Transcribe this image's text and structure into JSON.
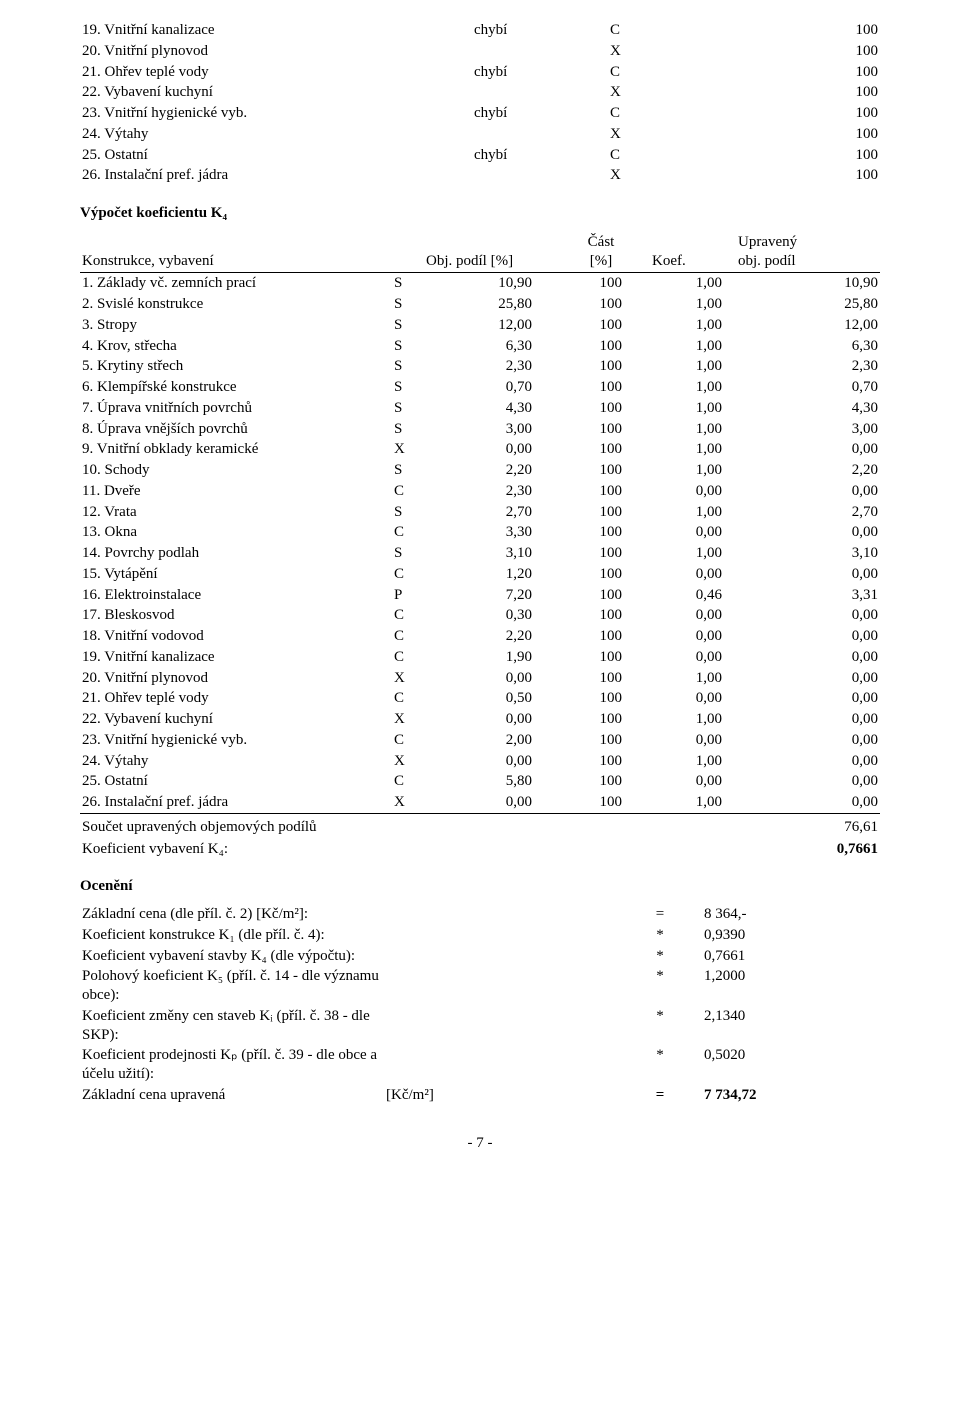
{
  "tbl1": {
    "rows": [
      {
        "label": "19. Vnitřní kanalizace",
        "c2": "chybí",
        "c3": "C",
        "c4": "100"
      },
      {
        "label": "20. Vnitřní plynovod",
        "c2": "",
        "c3": "X",
        "c4": "100"
      },
      {
        "label": "21. Ohřev teplé vody",
        "c2": "chybí",
        "c3": "C",
        "c4": "100"
      },
      {
        "label": "22. Vybavení kuchyní",
        "c2": "",
        "c3": "X",
        "c4": "100"
      },
      {
        "label": "23. Vnitřní hygienické vyb.",
        "c2": "chybí",
        "c3": "C",
        "c4": "100"
      },
      {
        "label": "24. Výtahy",
        "c2": "",
        "c3": "X",
        "c4": "100"
      },
      {
        "label": "25. Ostatní",
        "c2": "chybí",
        "c3": "C",
        "c4": "100"
      },
      {
        "label": "26. Instalační pref. jádra",
        "c2": "",
        "c3": "X",
        "c4": "100"
      }
    ]
  },
  "k4_heading": "Výpočet koeficientu K₄",
  "tbl2": {
    "headers": {
      "h1": "Konstrukce, vybavení",
      "h2": "",
      "h3": "Obj. podíl [%]",
      "h4": "Část\n[%]",
      "h5": "Koef.",
      "h6": "Upravený\nobj. podíl"
    },
    "rows": [
      {
        "label": "1. Základy vč. zemních prací",
        "s": "S",
        "op": "10,90",
        "cast": "100",
        "koef": "1,00",
        "up": "10,90"
      },
      {
        "label": "2. Svislé konstrukce",
        "s": "S",
        "op": "25,80",
        "cast": "100",
        "koef": "1,00",
        "up": "25,80"
      },
      {
        "label": "3. Stropy",
        "s": "S",
        "op": "12,00",
        "cast": "100",
        "koef": "1,00",
        "up": "12,00"
      },
      {
        "label": "4. Krov, střecha",
        "s": "S",
        "op": "6,30",
        "cast": "100",
        "koef": "1,00",
        "up": "6,30"
      },
      {
        "label": "5. Krytiny střech",
        "s": "S",
        "op": "2,30",
        "cast": "100",
        "koef": "1,00",
        "up": "2,30"
      },
      {
        "label": "6. Klempířské konstrukce",
        "s": "S",
        "op": "0,70",
        "cast": "100",
        "koef": "1,00",
        "up": "0,70"
      },
      {
        "label": "7. Úprava vnitřních povrchů",
        "s": "S",
        "op": "4,30",
        "cast": "100",
        "koef": "1,00",
        "up": "4,30"
      },
      {
        "label": "8. Úprava vnějších povrchů",
        "s": "S",
        "op": "3,00",
        "cast": "100",
        "koef": "1,00",
        "up": "3,00"
      },
      {
        "label": "9. Vnitřní obklady keramické",
        "s": "X",
        "op": "0,00",
        "cast": "100",
        "koef": "1,00",
        "up": "0,00"
      },
      {
        "label": "10. Schody",
        "s": "S",
        "op": "2,20",
        "cast": "100",
        "koef": "1,00",
        "up": "2,20"
      },
      {
        "label": "11. Dveře",
        "s": "C",
        "op": "2,30",
        "cast": "100",
        "koef": "0,00",
        "up": "0,00"
      },
      {
        "label": "12. Vrata",
        "s": "S",
        "op": "2,70",
        "cast": "100",
        "koef": "1,00",
        "up": "2,70"
      },
      {
        "label": "13. Okna",
        "s": "C",
        "op": "3,30",
        "cast": "100",
        "koef": "0,00",
        "up": "0,00"
      },
      {
        "label": "14. Povrchy podlah",
        "s": "S",
        "op": "3,10",
        "cast": "100",
        "koef": "1,00",
        "up": "3,10"
      },
      {
        "label": "15. Vytápění",
        "s": "C",
        "op": "1,20",
        "cast": "100",
        "koef": "0,00",
        "up": "0,00"
      },
      {
        "label": "16. Elektroinstalace",
        "s": "P",
        "op": "7,20",
        "cast": "100",
        "koef": "0,46",
        "up": "3,31"
      },
      {
        "label": "17. Bleskosvod",
        "s": "C",
        "op": "0,30",
        "cast": "100",
        "koef": "0,00",
        "up": "0,00"
      },
      {
        "label": "18. Vnitřní vodovod",
        "s": "C",
        "op": "2,20",
        "cast": "100",
        "koef": "0,00",
        "up": "0,00"
      },
      {
        "label": "19. Vnitřní kanalizace",
        "s": "C",
        "op": "1,90",
        "cast": "100",
        "koef": "0,00",
        "up": "0,00"
      },
      {
        "label": "20. Vnitřní plynovod",
        "s": "X",
        "op": "0,00",
        "cast": "100",
        "koef": "1,00",
        "up": "0,00"
      },
      {
        "label": "21. Ohřev teplé vody",
        "s": "C",
        "op": "0,50",
        "cast": "100",
        "koef": "0,00",
        "up": "0,00"
      },
      {
        "label": "22. Vybavení kuchyní",
        "s": "X",
        "op": "0,00",
        "cast": "100",
        "koef": "1,00",
        "up": "0,00"
      },
      {
        "label": "23. Vnitřní hygienické vyb.",
        "s": "C",
        "op": "2,00",
        "cast": "100",
        "koef": "0,00",
        "up": "0,00"
      },
      {
        "label": "24. Výtahy",
        "s": "X",
        "op": "0,00",
        "cast": "100",
        "koef": "1,00",
        "up": "0,00"
      },
      {
        "label": "25. Ostatní",
        "s": "C",
        "op": "5,80",
        "cast": "100",
        "koef": "0,00",
        "up": "0,00"
      },
      {
        "label": "26. Instalační pref. jádra",
        "s": "X",
        "op": "0,00",
        "cast": "100",
        "koef": "1,00",
        "up": "0,00"
      }
    ],
    "sum_label": "Součet upravených objemových podílů",
    "sum_value": "76,61",
    "k4_label": "Koeficient vybavení K₄:",
    "k4_value": "0,7661"
  },
  "ocen_heading": "Ocenění",
  "tbl3": {
    "rows": [
      {
        "l1": "Základní cena (dle příl. č. 2) [Kč/m²]:",
        "l2": "",
        "op": "=",
        "val": "8 364,-"
      },
      {
        "l1": "Koeficient konstrukce K₁ (dle příl. č. 4):",
        "l2": "",
        "op": "*",
        "val": "0,9390"
      },
      {
        "l1": "Koeficient vybavení stavby K₄ (dle výpočtu):",
        "l2": "",
        "op": "*",
        "val": "0,7661"
      },
      {
        "l1": "Polohový koeficient K₅ (příl. č. 14 - dle významu obce):",
        "l2": "",
        "op": "*",
        "val": "1,2000"
      },
      {
        "l1": "Koeficient změny cen staveb Kᵢ (příl. č. 38 - dle SKP):",
        "l2": "",
        "op": "*",
        "val": "2,1340"
      },
      {
        "l1": "Koeficient prodejnosti Kₚ (příl. č. 39 - dle obce a účelu užití):",
        "l2": "",
        "op": "*",
        "val": "0,5020"
      }
    ],
    "final1": "Základní cena upravená",
    "final2": "[Kč/m²]",
    "finalop": "=",
    "finalval": "7 734,72"
  },
  "footer": "- 7 -"
}
